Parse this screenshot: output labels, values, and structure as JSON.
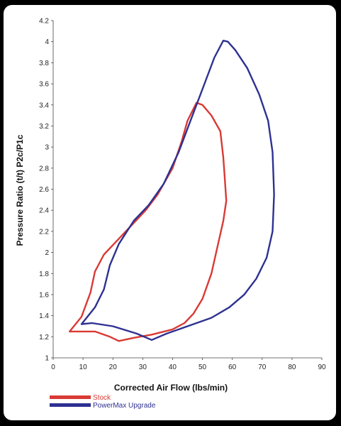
{
  "chart_data": {
    "type": "line",
    "title": "",
    "xlabel": "Corrected Air Flow (lbs/min)",
    "ylabel": "Pressure Ratio (t/t) P2c/P1c",
    "xlim": [
      0,
      90
    ],
    "ylim": [
      1,
      4.2
    ],
    "x_ticks": [
      "0",
      "10",
      "20",
      "30",
      "40",
      "50",
      "60",
      "70",
      "80",
      "90"
    ],
    "y_ticks": [
      "1",
      "1.2",
      "1.4",
      "1.6",
      "1.8",
      "2",
      "2.2",
      "2.4",
      "2.6",
      "2.8",
      "3",
      "3.2",
      "3.4",
      "3.6",
      "3.8",
      "4",
      "4.2"
    ],
    "grid": false,
    "legend_position": "bottom-left",
    "series": [
      {
        "name": "Stock",
        "color": "#d93a34",
        "points": [
          [
            5.5,
            1.25
          ],
          [
            9.5,
            1.39
          ],
          [
            12.5,
            1.62
          ],
          [
            14,
            1.82
          ],
          [
            17,
            1.98
          ],
          [
            22,
            2.13
          ],
          [
            27,
            2.28
          ],
          [
            31,
            2.4
          ],
          [
            35,
            2.55
          ],
          [
            40,
            2.8
          ],
          [
            43,
            3.05
          ],
          [
            45,
            3.25
          ],
          [
            48,
            3.42
          ],
          [
            50,
            3.4
          ],
          [
            53,
            3.3
          ],
          [
            56,
            3.15
          ],
          [
            57,
            2.9
          ],
          [
            57.5,
            2.7
          ],
          [
            58,
            2.49
          ],
          [
            57,
            2.3
          ],
          [
            55,
            2.05
          ],
          [
            53,
            1.8
          ],
          [
            50,
            1.56
          ],
          [
            47,
            1.42
          ],
          [
            44,
            1.33
          ],
          [
            40,
            1.27
          ],
          [
            33,
            1.22
          ],
          [
            27,
            1.19
          ],
          [
            22,
            1.16
          ],
          [
            19,
            1.2
          ],
          [
            14,
            1.25
          ],
          [
            5.5,
            1.25
          ]
        ]
      },
      {
        "name": "PowerMax Upgrade",
        "color": "#2e3191",
        "points": [
          [
            9.5,
            1.32
          ],
          [
            14,
            1.48
          ],
          [
            17,
            1.65
          ],
          [
            19,
            1.88
          ],
          [
            22,
            2.08
          ],
          [
            27,
            2.3
          ],
          [
            32,
            2.45
          ],
          [
            37,
            2.65
          ],
          [
            42,
            2.95
          ],
          [
            46,
            3.25
          ],
          [
            50,
            3.55
          ],
          [
            54,
            3.85
          ],
          [
            57,
            4.01
          ],
          [
            58.5,
            4.0
          ],
          [
            61,
            3.92
          ],
          [
            65,
            3.75
          ],
          [
            69,
            3.5
          ],
          [
            72,
            3.25
          ],
          [
            73.5,
            2.95
          ],
          [
            74,
            2.55
          ],
          [
            73.5,
            2.2
          ],
          [
            71.5,
            1.95
          ],
          [
            68,
            1.75
          ],
          [
            64,
            1.6
          ],
          [
            59,
            1.48
          ],
          [
            53,
            1.38
          ],
          [
            45,
            1.3
          ],
          [
            38,
            1.23
          ],
          [
            33,
            1.17
          ],
          [
            28,
            1.23
          ],
          [
            20,
            1.3
          ],
          [
            13,
            1.33
          ],
          [
            9.5,
            1.32
          ]
        ]
      }
    ]
  }
}
